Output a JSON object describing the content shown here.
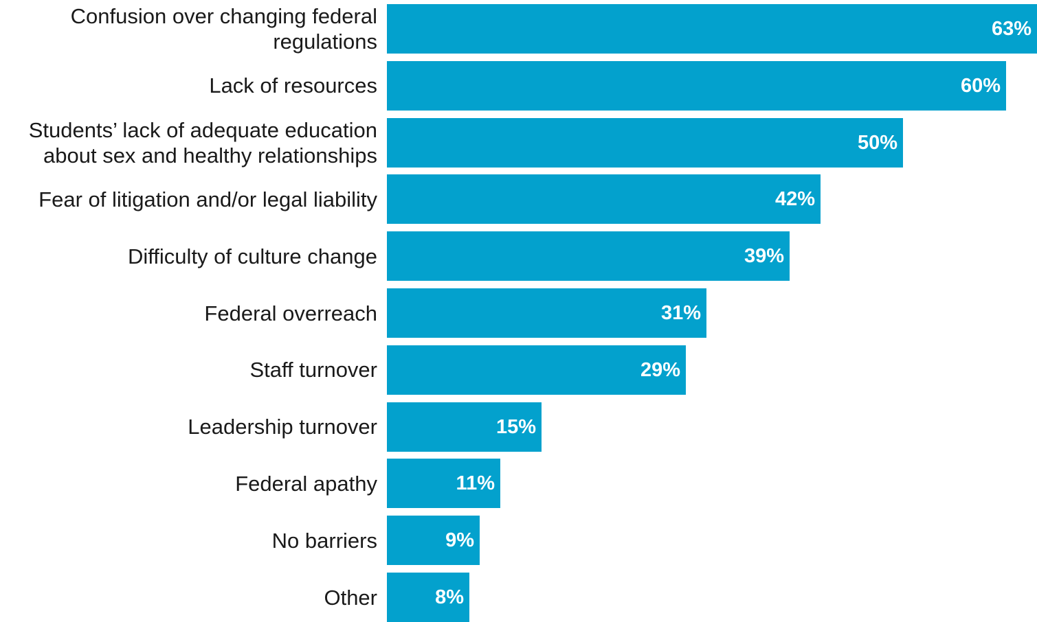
{
  "chart_data": {
    "type": "bar",
    "orientation": "horizontal",
    "categories": [
      "Confusion over changing federal regulations",
      "Lack of resources",
      "Students’ lack of adequate education about sex and healthy relationships",
      "Fear of litigation and/or legal liability",
      "Difficulty of culture change",
      "Federal overreach",
      "Staff turnover",
      "Leadership turnover",
      "Federal apathy",
      "No barriers",
      "Other"
    ],
    "values": [
      63,
      60,
      50,
      42,
      39,
      31,
      29,
      15,
      11,
      9,
      8
    ],
    "value_labels": [
      "63%",
      "60%",
      "50%",
      "42%",
      "39%",
      "31%",
      "29%",
      "15%",
      "11%",
      "9%",
      "8%"
    ],
    "xlim": [
      0,
      63
    ],
    "grid": false,
    "bar_color": "#03A1CD",
    "label_color": "#ffffff"
  }
}
